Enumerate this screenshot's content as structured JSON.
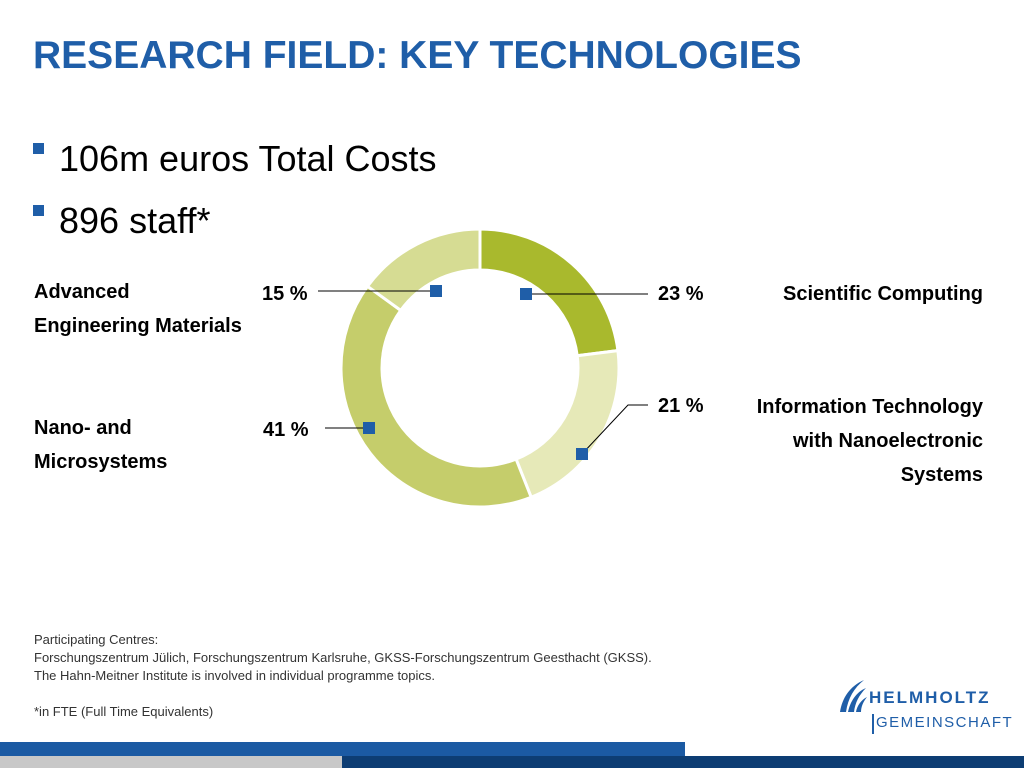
{
  "title": "RESEARCH FIELD: KEY TECHNOLOGIES",
  "bullets": [
    "106m euros Total Costs",
    "896 staff*"
  ],
  "chart_data": {
    "type": "pie",
    "variant": "donut",
    "slices": [
      {
        "label": "Scientific Computing",
        "value": 23,
        "value_label": "23 %",
        "color": "#a9b92d"
      },
      {
        "label": "Information Technology with Nanoelectronic Systems",
        "value": 21,
        "value_label": "21 %",
        "color": "#e6e9b8"
      },
      {
        "label": "Nano- and Microsystems",
        "value": 41,
        "value_label": "41 %",
        "color": "#c5cd6b"
      },
      {
        "label": "Advanced Engineering Materials",
        "value": 15,
        "value_label": "15 %",
        "color": "#d6dc93"
      }
    ],
    "marker_color": "#1f5ea8"
  },
  "labels": {
    "aem_line1": "Advanced",
    "aem_line2": "Engineering Materials",
    "nano_line1": "Nano- and",
    "nano_line2": "Microsystems",
    "sci": "Scientific Computing",
    "it_line1": "Information Technology",
    "it_line2": "with Nanoelectronic",
    "it_line3": "Systems"
  },
  "footer": {
    "line1": "Participating Centres:",
    "line2": "Forschungszentrum Jülich, Forschungszentrum Karlsruhe, GKSS-Forschungszentrum Geesthacht (GKSS).",
    "line3": "The Hahn-Meitner Institute is involved in individual programme topics.",
    "line4": "*in FTE (Full Time Equivalents)"
  },
  "logo": {
    "line1": "HELMHOLTZ",
    "line2": "GEMEINSCHAFT"
  },
  "colors": {
    "brand_blue": "#1f5ea8",
    "dark_blue": "#0d3d73"
  }
}
